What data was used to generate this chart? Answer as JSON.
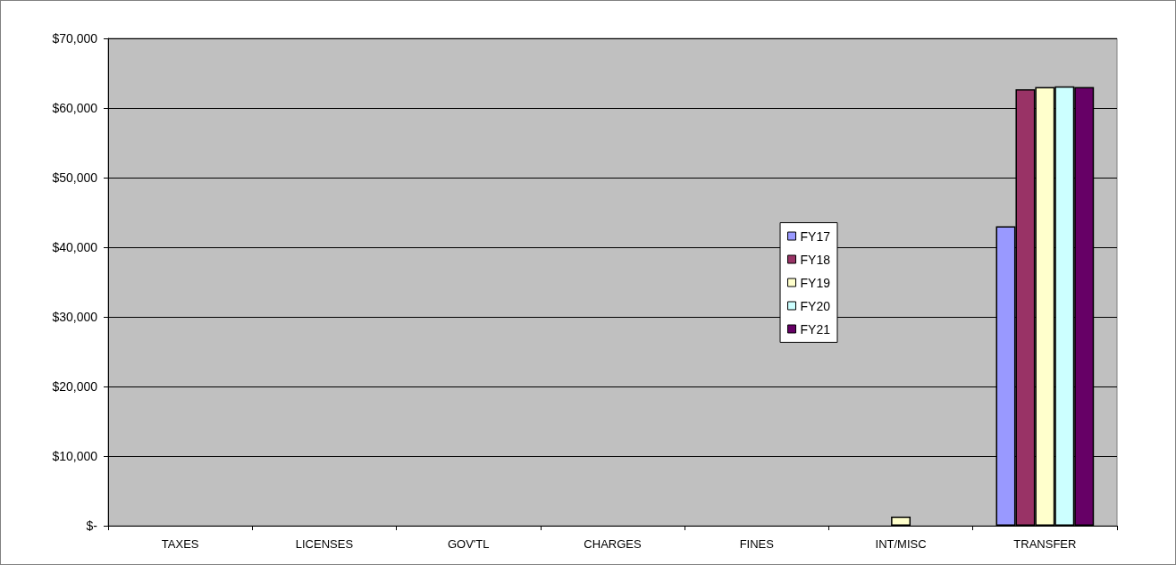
{
  "chart_data": {
    "type": "bar",
    "categories": [
      "TAXES",
      "LICENSES",
      "GOV'TL",
      "CHARGES",
      "FINES",
      "INT/MISC",
      "TRANSFER"
    ],
    "series": [
      {
        "name": "FY17",
        "color": "#9999ff",
        "values": [
          null,
          null,
          null,
          null,
          null,
          null,
          43000
        ]
      },
      {
        "name": "FY18",
        "color": "#993366",
        "values": [
          null,
          null,
          null,
          null,
          null,
          null,
          62700
        ]
      },
      {
        "name": "FY19",
        "color": "#ffffcc",
        "values": [
          null,
          null,
          null,
          null,
          null,
          1300,
          63000
        ]
      },
      {
        "name": "FY20",
        "color": "#ccffff",
        "values": [
          null,
          null,
          null,
          null,
          null,
          null,
          63100
        ]
      },
      {
        "name": "FY21",
        "color": "#660066",
        "values": [
          null,
          null,
          null,
          null,
          null,
          null,
          63000
        ]
      }
    ],
    "ylim": [
      0,
      70000
    ],
    "yticks": [
      {
        "value": 0,
        "label": "$-"
      },
      {
        "value": 10000,
        "label": "$10,000"
      },
      {
        "value": 20000,
        "label": "$20,000"
      },
      {
        "value": 30000,
        "label": "$30,000"
      },
      {
        "value": 40000,
        "label": "$40,000"
      },
      {
        "value": 50000,
        "label": "$50,000"
      },
      {
        "value": 60000,
        "label": "$60,000"
      },
      {
        "value": 70000,
        "label": "$70,000"
      }
    ],
    "grid": "y",
    "legend": "right"
  }
}
